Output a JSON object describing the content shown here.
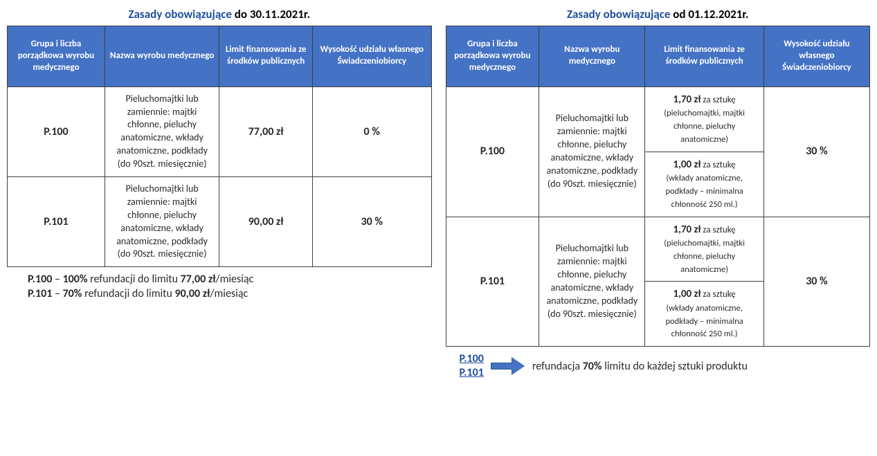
{
  "left": {
    "title_blue": "Zasady obowiązujące ",
    "title_black": "do 30.11.2021r.",
    "headers": [
      "Grupa i liczba porządkowa wyrobu medycznego",
      "Nazwa wyrobu medycznego",
      "Limit finansowania ze środków publicznych",
      "Wysokość udziału własnego Świadczeniobiorcy"
    ],
    "rows": [
      {
        "code": "P.100",
        "name": "Pieluchomajtki lub zamiennie: majtki chłonne, pieluchy anatomiczne, wkłady anatomiczne, podkłady (do 90szt. miesięcznie)",
        "limit": "77,00 zł",
        "share": "0 %"
      },
      {
        "code": "P.101",
        "name": "Pieluchomajtki lub zamiennie: majtki chłonne, pieluchy anatomiczne, wkłady anatomiczne, podkłady (do 90szt. miesięcznie)",
        "limit": "90,00 zł",
        "share": "30 %"
      }
    ],
    "footer1_a": "P.100",
    "footer1_b": " – ",
    "footer1_c": "100%",
    "footer1_d": " refundacji do limitu ",
    "footer1_e": "77,00 zł",
    "footer1_f": "/miesiąc",
    "footer2_a": "P.101",
    "footer2_b": " – ",
    "footer2_c": "70%",
    "footer2_d": " refundacji do limitu ",
    "footer2_e": "90,00 zł",
    "footer2_f": "/miesiąc"
  },
  "right": {
    "title_blue": "Zasady obowiązujące ",
    "title_black": "od 01.12.2021r.",
    "headers": [
      "Grupa i liczba porządkowa wyrobu medycznego",
      "Nazwa wyrobu medycznego",
      "Limit finansowania ze środków publicznych",
      "Wysokość udziału własnego Świadczeniobiorcy"
    ],
    "rows": [
      {
        "code": "P.100",
        "name": "Pieluchomajtki lub zamiennie: majtki chłonne, pieluchy anatomiczne, wkłady anatomiczne, podkłady (do 90szt. miesięcznie)",
        "limit_a_price": "1,70 zł",
        "limit_a_unit": " za sztukę",
        "limit_a_note": "(pieluchomajtki, majtki chłonne, pieluchy anatomiczne)",
        "limit_b_price": "1,00 zł",
        "limit_b_unit": " za sztukę",
        "limit_b_note": "(wkłady anatomiczne, podkłady – minimalna chłonność 250 ml.)",
        "share": "30 %"
      },
      {
        "code": "P.101",
        "name": "Pieluchomajtki lub zamiennie: majtki chłonne, pieluchy anatomiczne, wkłady anatomiczne, podkłady (do 90szt. miesięcznie)",
        "limit_a_price": "1,70 zł",
        "limit_a_unit": " za sztukę",
        "limit_a_note": "(pieluchomajtki, majtki chłonne, pieluchy anatomiczne)",
        "limit_b_price": "1,00 zł",
        "limit_b_unit": " za sztukę",
        "limit_b_note": "(wkłady anatomiczne, podkłady – minimalna chłonność 250 ml.)",
        "share": "30 %"
      }
    ],
    "footer_code1": "P.100",
    "footer_code2": "P.101",
    "footer_text_a": "refundacja ",
    "footer_text_b": "70%",
    "footer_text_c": " limitu do każdej sztuki produktu"
  },
  "style": {
    "header_bg": "#4472c4",
    "header_fg": "#ffffff",
    "border_color": "#3e3e3e",
    "title_color": "#1f4e9c",
    "arrow_fill": "#4472c4",
    "arrow_border": "#2f528f"
  }
}
